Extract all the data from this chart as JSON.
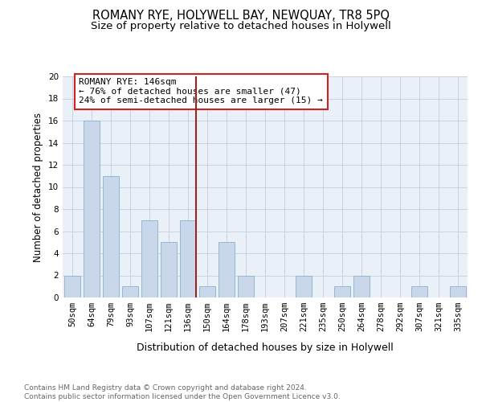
{
  "title": "ROMANY RYE, HOLYWELL BAY, NEWQUAY, TR8 5PQ",
  "subtitle": "Size of property relative to detached houses in Holywell",
  "xlabel": "Distribution of detached houses by size in Holywell",
  "ylabel": "Number of detached properties",
  "categories": [
    "50sqm",
    "64sqm",
    "79sqm",
    "93sqm",
    "107sqm",
    "121sqm",
    "136sqm",
    "150sqm",
    "164sqm",
    "178sqm",
    "193sqm",
    "207sqm",
    "221sqm",
    "235sqm",
    "250sqm",
    "264sqm",
    "278sqm",
    "292sqm",
    "307sqm",
    "321sqm",
    "335sqm"
  ],
  "values": [
    2,
    16,
    11,
    1,
    7,
    5,
    7,
    1,
    5,
    2,
    0,
    0,
    2,
    0,
    1,
    2,
    0,
    0,
    1,
    0,
    1
  ],
  "bar_color": "#c8d8ea",
  "bar_edge_color": "#8ab0cc",
  "vline_x_idx": 6,
  "vline_color": "#992222",
  "annotation_text": "ROMANY RYE: 146sqm\n← 76% of detached houses are smaller (47)\n24% of semi-detached houses are larger (15) →",
  "annotation_box_color": "#ffffff",
  "annotation_border_color": "#cc2222",
  "grid_color": "#c8d4e0",
  "background_color": "#eaf0f8",
  "ylim": [
    0,
    20
  ],
  "yticks": [
    0,
    2,
    4,
    6,
    8,
    10,
    12,
    14,
    16,
    18,
    20
  ],
  "footer": "Contains HM Land Registry data © Crown copyright and database right 2024.\nContains public sector information licensed under the Open Government Licence v3.0.",
  "title_fontsize": 10.5,
  "subtitle_fontsize": 9.5,
  "xlabel_fontsize": 9,
  "ylabel_fontsize": 8.5,
  "tick_fontsize": 7.5,
  "annotation_fontsize": 8,
  "footer_fontsize": 6.5
}
